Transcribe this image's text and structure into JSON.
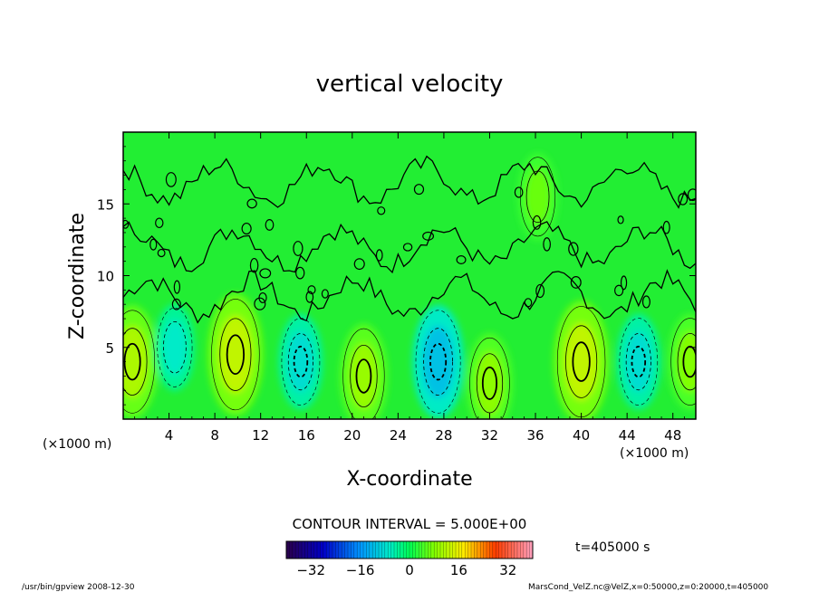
{
  "chart_data": {
    "type": "heatmap",
    "title": "vertical velocity",
    "xlabel": "X-coordinate",
    "ylabel": "Z-coordinate",
    "x_unit": "(×1000 m)",
    "y_unit": "(×1000 m)",
    "xlim": [
      0,
      50
    ],
    "ylim": [
      0,
      20
    ],
    "x_ticks": [
      4,
      8,
      12,
      16,
      20,
      24,
      28,
      32,
      36,
      40,
      44,
      48
    ],
    "y_ticks": [
      5,
      10,
      15
    ],
    "contour_interval_label": "CONTOUR INTERVAL = 5.000E+00",
    "time_label": "t=405000 s",
    "colorbar": {
      "range": [
        -40,
        40
      ],
      "ticks": [
        -32,
        -16,
        0,
        16,
        32
      ],
      "colormap": "rainbow",
      "low_color": "#2a004a",
      "mid_color": "#00ff55",
      "high_color": "#ff9fbf"
    },
    "features": [
      {
        "kind": "updraft",
        "x": 0.8,
        "z": 4.0,
        "peak": 14
      },
      {
        "kind": "downdraft",
        "x": 4.5,
        "z": 5.0,
        "peak": -8
      },
      {
        "kind": "updraft",
        "x": 9.8,
        "z": 4.5,
        "peak": 16
      },
      {
        "kind": "downdraft",
        "x": 15.5,
        "z": 4.0,
        "peak": -10
      },
      {
        "kind": "updraft",
        "x": 21.0,
        "z": 3.0,
        "peak": 12
      },
      {
        "kind": "downdraft",
        "x": 27.5,
        "z": 4.0,
        "peak": -14
      },
      {
        "kind": "updraft",
        "x": 32.0,
        "z": 2.5,
        "peak": 11
      },
      {
        "kind": "updraft",
        "x": 36.2,
        "z": 15.5,
        "peak": 8
      },
      {
        "kind": "updraft",
        "x": 40.0,
        "z": 4.0,
        "peak": 16
      },
      {
        "kind": "downdraft",
        "x": 45.0,
        "z": 4.0,
        "peak": -10
      },
      {
        "kind": "updraft",
        "x": 49.5,
        "z": 4.0,
        "peak": 10
      }
    ],
    "background_color": "#22ee33"
  },
  "footer": {
    "left": "/usr/bin/gpview   2008-12-30",
    "right": "MarsCond_VelZ.nc@VelZ,x=0:50000,z=0:20000,t=405000"
  }
}
